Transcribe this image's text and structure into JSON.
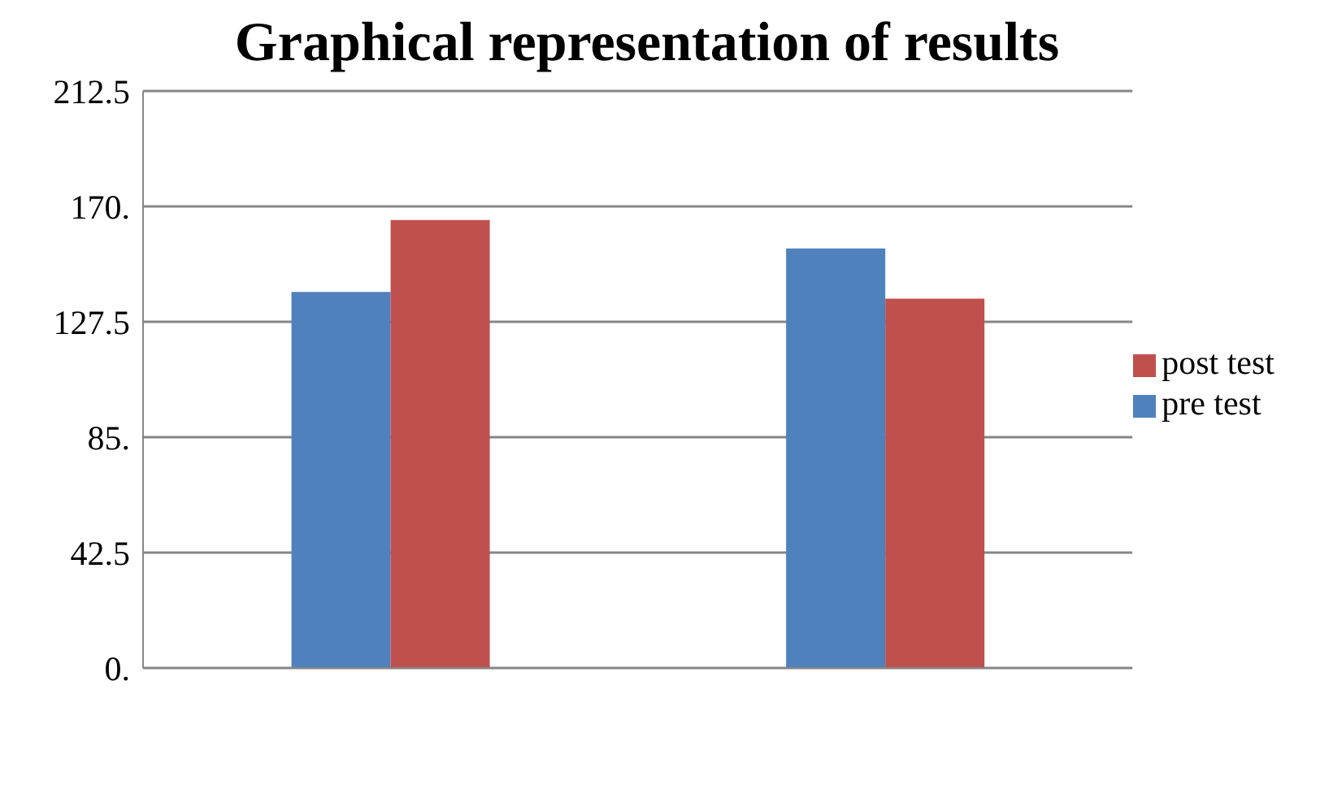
{
  "chart_data": {
    "type": "bar",
    "title": "Graphical representation of results",
    "categories": [
      null,
      null
    ],
    "series": [
      {
        "name": "pre test",
        "color": "#4f81bd",
        "values": [
          138.5,
          154.5
        ]
      },
      {
        "name": "post test",
        "color": "#c0504d",
        "values": [
          165,
          136
        ]
      }
    ],
    "ylim": [
      0,
      212.5
    ],
    "yticks": [
      {
        "value": 0,
        "label": "0."
      },
      42.5,
      {
        "value": 85,
        "label": "85."
      },
      127.5,
      {
        "value": 170,
        "label": "170."
      },
      212.5
    ],
    "grid": "y",
    "legend": "right"
  }
}
